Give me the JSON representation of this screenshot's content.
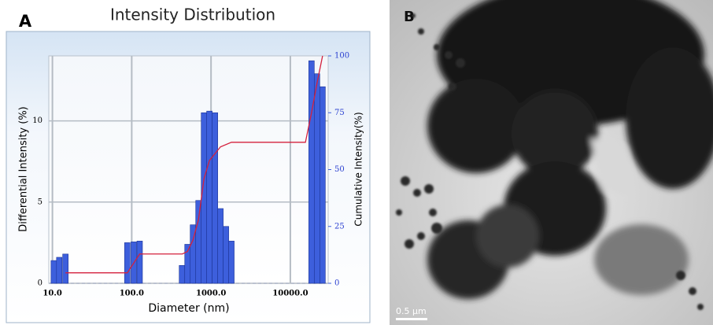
{
  "chart_data": {
    "type": "bar",
    "panel_label": "A",
    "title": "Intensity Distribution",
    "x_label": "Diameter (nm)",
    "y_label": "Differential Intensity (%)",
    "y2_label": "Cumulative Intensity(%)",
    "xscale": "log",
    "grid": true,
    "xlim": [
      9,
      30000
    ],
    "xticks": [
      {
        "value": 10,
        "label": "10.0"
      },
      {
        "value": 100,
        "label": "100.0"
      },
      {
        "value": 1000,
        "label": "1000.0"
      },
      {
        "value": 10000,
        "label": "10000.0"
      }
    ],
    "ylim": [
      0,
      14
    ],
    "yticks": [
      0,
      5,
      10
    ],
    "y2lim": [
      0,
      100
    ],
    "y2ticks": [
      0,
      25,
      50,
      75,
      100
    ],
    "series": [
      {
        "type": "bar",
        "color": "#3d5fdc",
        "x": [
          10.4,
          12.2,
          14.6,
          88,
          106,
          126,
          430,
          505,
          592,
          695,
          815,
          955,
          1122,
          1315,
          1543,
          1808,
          18500,
          21700,
          25500
        ],
        "values": [
          1.4,
          1.6,
          1.8,
          2.5,
          2.55,
          2.6,
          1.1,
          2.4,
          3.6,
          5.1,
          10.5,
          10.6,
          10.5,
          4.6,
          3.5,
          2.6,
          13.7,
          12.9,
          12.1
        ]
      },
      {
        "type": "line",
        "color": "#d4213d",
        "axis": "y2",
        "x": [
          14.6,
          88,
          126,
          435,
          505,
          592,
          695,
          815,
          955,
          1122,
          1315,
          1808,
          15500,
          18500,
          21700,
          25500
        ],
        "values": [
          4.6,
          4.6,
          12.9,
          12.9,
          14,
          19,
          28,
          46,
          54,
          57,
          60,
          62,
          62,
          75,
          88,
          100
        ]
      }
    ]
  },
  "image_panel": {
    "label": "B",
    "scale_bar": "0.5 μm"
  }
}
